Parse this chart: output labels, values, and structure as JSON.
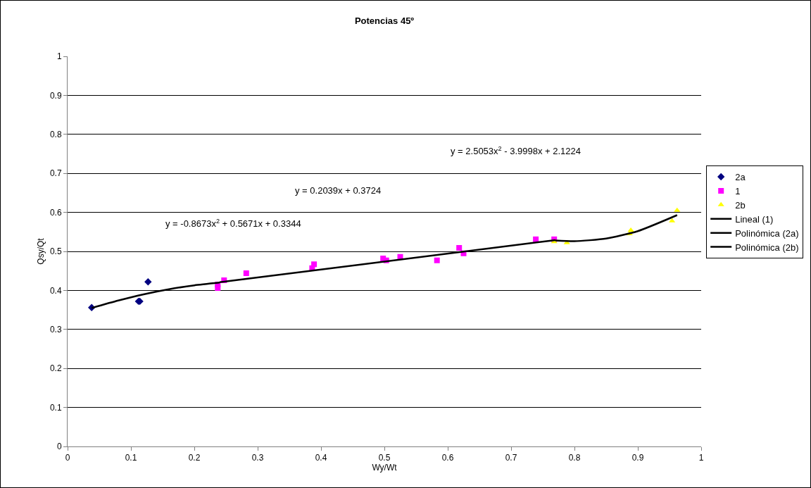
{
  "chart_data": {
    "type": "scatter",
    "title": "Potencias 45º",
    "xlabel": "Wy/Wt",
    "ylabel": "Qsy/Qt",
    "xlim": [
      0,
      1
    ],
    "xticks": [
      0,
      0.1,
      0.2,
      0.3,
      0.4,
      0.5,
      0.6,
      0.7,
      0.8,
      0.9,
      1
    ],
    "ylim": [
      0,
      1
    ],
    "yticks": [
      0,
      0.1,
      0.2,
      0.3,
      0.4,
      0.5,
      0.6,
      0.7,
      0.8,
      0.9,
      1
    ],
    "grid": "y",
    "legend": "right",
    "series": [
      {
        "name": "2a",
        "marker": "diamond",
        "color": "#000080",
        "x": [
          0.038,
          0.112,
          0.114,
          0.127
        ],
        "values": [
          0.356,
          0.372,
          0.372,
          0.422
        ]
      },
      {
        "name": "1",
        "marker": "square",
        "color": "#ff00ff",
        "x": [
          0.237,
          0.237,
          0.247,
          0.282,
          0.389,
          0.386,
          0.498,
          0.503,
          0.525,
          0.583,
          0.618,
          0.625,
          0.739,
          0.768
        ],
        "values": [
          0.415,
          0.406,
          0.426,
          0.444,
          0.467,
          0.457,
          0.482,
          0.477,
          0.486,
          0.477,
          0.509,
          0.495,
          0.531,
          0.531
        ]
      },
      {
        "name": "2b",
        "marker": "triangle",
        "color": "#ffff00",
        "x": [
          0.768,
          0.788,
          0.887,
          0.889,
          0.954,
          0.962
        ],
        "values": [
          0.525,
          0.522,
          0.545,
          0.554,
          0.578,
          0.605
        ]
      },
      {
        "name": "Lineal (1)",
        "type": "line",
        "marker": "none",
        "color": "#000000",
        "x": [
          0.24,
          0.77
        ],
        "values": [
          0.421,
          0.529
        ]
      },
      {
        "name": "Polinómica (2a)",
        "type": "line",
        "marker": "none",
        "color": "#000000",
        "x": [
          0.038,
          0.08,
          0.12,
          0.16,
          0.2,
          0.24
        ],
        "values": [
          0.355,
          0.374,
          0.39,
          0.403,
          0.413,
          0.42
        ]
      },
      {
        "name": "Polinómica (2b)",
        "type": "line",
        "marker": "none",
        "color": "#000000",
        "x": [
          0.77,
          0.8,
          0.85,
          0.9,
          0.962
        ],
        "values": [
          0.528,
          0.526,
          0.533,
          0.552,
          0.593
        ]
      }
    ],
    "annotations": [
      "y = -0.8673x$^{2}$ + 0.5671x + 0.3344",
      "y = 0.2039x + 0.3724",
      "y = 2.5053x$^{2}$ - 3.9998x + 2.1224"
    ]
  }
}
